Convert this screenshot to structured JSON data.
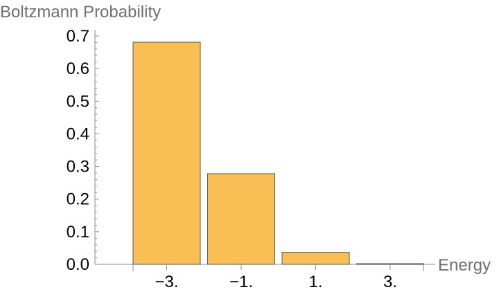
{
  "chart_data": {
    "type": "bar",
    "ylabel": "Boltzmann Probability",
    "xlabel": "Energy",
    "categories": [
      "−3.",
      "−1.",
      "1.",
      "3."
    ],
    "values": [
      0.681,
      0.278,
      0.037,
      0.002
    ],
    "ylim": [
      0,
      0.7
    ],
    "y_ticks": [
      "0.0",
      "0.1",
      "0.2",
      "0.3",
      "0.4",
      "0.5",
      "0.6",
      "0.7"
    ],
    "y_tick_values": [
      0,
      0.1,
      0.2,
      0.3,
      0.4,
      0.5,
      0.6,
      0.7
    ],
    "grid": false,
    "bar_color": "#F9BF55"
  }
}
